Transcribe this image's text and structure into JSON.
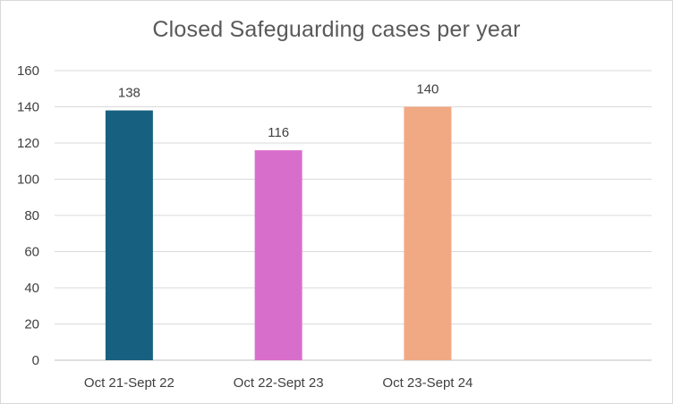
{
  "chart_data": {
    "type": "bar",
    "title": "Closed Safeguarding cases per year",
    "categories": [
      "Oct 21-Sept 22",
      "Oct 22-Sept 23",
      "Oct 23-Sept 24"
    ],
    "values": [
      138,
      116,
      140
    ],
    "colors": [
      "#17607f",
      "#d86ecc",
      "#f1a983"
    ],
    "xlabel": "",
    "ylabel": "",
    "ylim": [
      0,
      160
    ],
    "yticks": [
      0,
      20,
      40,
      60,
      80,
      100,
      120,
      140,
      160
    ],
    "grid": true,
    "legend": "none",
    "data_labels": [
      "138",
      "116",
      "140"
    ]
  }
}
